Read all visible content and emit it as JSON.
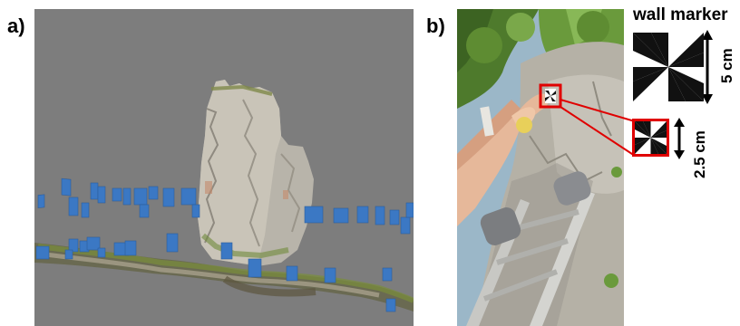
{
  "panels": {
    "a_label": "a)",
    "b_label": "b)"
  },
  "sidebar": {
    "title": "wall marker",
    "large_marker_size": "5 cm",
    "small_marker_size": "2.5 cm"
  },
  "colors": {
    "background_3d": "#7d7d7d",
    "camera_marker": "#3b78c4",
    "highlight_red": "#e00000"
  },
  "icons": {
    "arrow": "double-headed-arrow",
    "marker": "checkerboard-pinwheel-marker"
  }
}
